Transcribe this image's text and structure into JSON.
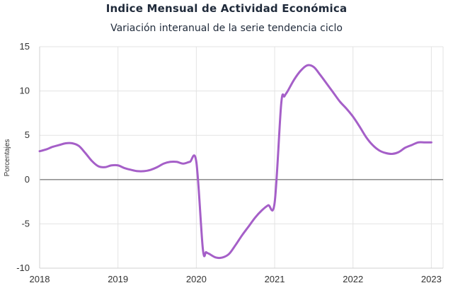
{
  "chart_data": {
    "type": "line",
    "title": "Indice Mensual de  Actividad Económica",
    "subtitle": "Variación interanual de la serie tendencia ciclo",
    "ylabel": "Porcentajes",
    "xlabel": "",
    "ylim": [
      -10,
      15
    ],
    "xlim": [
      2018,
      2023.15
    ],
    "yticks": [
      {
        "value": 15,
        "label": "15",
        "color": "#333333"
      },
      {
        "value": 10,
        "label": "10",
        "color": "#333333"
      },
      {
        "value": 5,
        "label": "5",
        "color": "#333333"
      },
      {
        "value": 0,
        "label": "0",
        "color": "#333333"
      },
      {
        "value": -5,
        "label": "-5",
        "color": "#333333"
      },
      {
        "value": -10,
        "label": "-10",
        "color": "#c00000"
      }
    ],
    "xticks": [
      {
        "value": 2018,
        "label": "2018"
      },
      {
        "value": 2019,
        "label": "2019"
      },
      {
        "value": 2020,
        "label": "2020"
      },
      {
        "value": 2021,
        "label": "2021"
      },
      {
        "value": 2022,
        "label": "2022"
      },
      {
        "value": 2023,
        "label": "2023"
      }
    ],
    "grid": true,
    "line_color": "#a55fc8",
    "zero_line_color": "#7f7f7f",
    "series": [
      {
        "x": [
          2018.0,
          2018.083,
          2018.167,
          2018.25,
          2018.333,
          2018.417,
          2018.5,
          2018.583,
          2018.667,
          2018.75,
          2018.833,
          2018.917,
          2019.0,
          2019.083,
          2019.167,
          2019.25,
          2019.333,
          2019.417,
          2019.5,
          2019.583,
          2019.667,
          2019.75,
          2019.833,
          2019.917,
          2020.0,
          2020.083,
          2020.125,
          2020.167,
          2020.25,
          2020.333,
          2020.417,
          2020.5,
          2020.583,
          2020.667,
          2020.75,
          2020.833,
          2020.917,
          2021.0,
          2021.083,
          2021.125,
          2021.167,
          2021.25,
          2021.333,
          2021.417,
          2021.5,
          2021.583,
          2021.667,
          2021.75,
          2021.833,
          2021.917,
          2022.0,
          2022.083,
          2022.167,
          2022.25,
          2022.333,
          2022.417,
          2022.5,
          2022.583,
          2022.667,
          2022.75,
          2022.833,
          2022.917,
          2023.0
        ],
        "y": [
          3.2,
          3.4,
          3.7,
          3.9,
          4.1,
          4.1,
          3.8,
          3.0,
          2.1,
          1.5,
          1.4,
          1.6,
          1.6,
          1.3,
          1.1,
          0.95,
          0.95,
          1.1,
          1.4,
          1.8,
          2.0,
          2.0,
          1.8,
          2.0,
          2.0,
          -7.8,
          -8.2,
          -8.4,
          -8.8,
          -8.8,
          -8.4,
          -7.4,
          -6.3,
          -5.3,
          -4.3,
          -3.5,
          -2.9,
          -2.6,
          8.5,
          9.4,
          10.0,
          11.3,
          12.3,
          12.9,
          12.7,
          11.8,
          10.8,
          9.8,
          8.8,
          8.0,
          7.1,
          6.0,
          4.8,
          3.9,
          3.3,
          3.0,
          2.9,
          3.1,
          3.6,
          3.9,
          4.2,
          4.2,
          4.2
        ]
      }
    ]
  }
}
